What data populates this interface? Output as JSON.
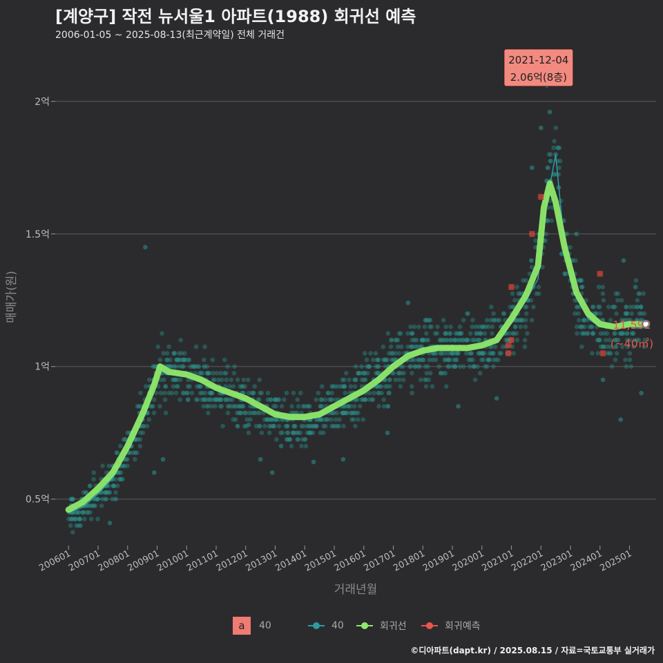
{
  "title": "[계양구] 작전 뉴서울1 아파트(1988) 회귀선 예측",
  "subtitle": "2006-01-05 ~ 2025-08-13(최근계약일) 전체 거래건",
  "credit": "©디아파트(dapt.kr) / 2025.08.15 / 자료=국토교통부 실거래가",
  "annotation": {
    "line1": "2021-12-04",
    "line2": "2.06억(8층)",
    "date_x": 2021.92,
    "value": 2.06
  },
  "end_label": {
    "line1": "11,592",
    "line2": "(~40㎡)"
  },
  "legend": {
    "box_letter": "a",
    "box_label": "40",
    "series_label": "40",
    "regression_label": "회귀선",
    "prediction_label": "회귀예측"
  },
  "colors": {
    "background": "#2b2b2d",
    "scatter": "#2a8c88",
    "series_line": "#2f9aa0",
    "regression": "#8ee86a",
    "prediction": "#e8574f",
    "annotation_bg": "#f28a80"
  },
  "chart_data": {
    "type": "scatter",
    "title": "[계양구] 작전 뉴서울1 아파트(1988) 회귀선 예측",
    "xlabel": "거래년월",
    "ylabel": "매매가(원)",
    "x_range": [
      2005.55,
      2025.9
    ],
    "ylim": [
      0.33,
      2.2
    ],
    "y_ticks": [
      0.5,
      1.0,
      1.5,
      2.0
    ],
    "y_tick_labels": [
      "0.5억",
      "1억",
      "1.5억",
      "2억"
    ],
    "x_ticks": [
      2006,
      2007,
      2008,
      2009,
      2010,
      2011,
      2012,
      2013,
      2014,
      2015,
      2016,
      2017,
      2018,
      2019,
      2020,
      2021,
      2022,
      2023,
      2024,
      2025
    ],
    "x_tick_labels": [
      "200601",
      "200701",
      "200801",
      "200901",
      "201001",
      "201101",
      "201201",
      "201301",
      "201401",
      "201501",
      "201601",
      "201701",
      "201801",
      "201901",
      "202001",
      "202101",
      "202201",
      "202301",
      "202401",
      "202501"
    ],
    "trend": [
      [
        2006.0,
        0.45
      ],
      [
        2006.5,
        0.47
      ],
      [
        2007.0,
        0.52
      ],
      [
        2007.5,
        0.58
      ],
      [
        2008.0,
        0.68
      ],
      [
        2008.5,
        0.8
      ],
      [
        2008.8,
        0.9
      ],
      [
        2009.05,
        1.0
      ],
      [
        2009.3,
        0.97
      ],
      [
        2009.8,
        0.97
      ],
      [
        2010.5,
        0.95
      ],
      [
        2011.0,
        0.92
      ],
      [
        2011.5,
        0.9
      ],
      [
        2012.0,
        0.88
      ],
      [
        2012.5,
        0.84
      ],
      [
        2013.0,
        0.82
      ],
      [
        2013.5,
        0.8
      ],
      [
        2014.0,
        0.8
      ],
      [
        2014.5,
        0.81
      ],
      [
        2015.0,
        0.84
      ],
      [
        2015.5,
        0.88
      ],
      [
        2016.0,
        0.92
      ],
      [
        2016.5,
        0.96
      ],
      [
        2017.0,
        1.01
      ],
      [
        2017.5,
        1.05
      ],
      [
        2018.0,
        1.06
      ],
      [
        2018.5,
        1.07
      ],
      [
        2019.0,
        1.07
      ],
      [
        2019.5,
        1.07
      ],
      [
        2020.0,
        1.08
      ],
      [
        2020.5,
        1.1
      ],
      [
        2021.0,
        1.17
      ],
      [
        2021.5,
        1.25
      ],
      [
        2021.9,
        1.33
      ],
      [
        2022.2,
        1.62
      ],
      [
        2022.5,
        1.8
      ],
      [
        2022.8,
        1.45
      ],
      [
        2023.2,
        1.26
      ],
      [
        2023.6,
        1.18
      ],
      [
        2024.0,
        1.15
      ],
      [
        2024.5,
        1.15
      ],
      [
        2025.0,
        1.16
      ],
      [
        2025.5,
        1.16
      ]
    ],
    "regression": [
      [
        2006.0,
        0.46
      ],
      [
        2006.5,
        0.49
      ],
      [
        2007.0,
        0.54
      ],
      [
        2007.5,
        0.6
      ],
      [
        2008.0,
        0.7
      ],
      [
        2008.5,
        0.82
      ],
      [
        2008.9,
        0.93
      ],
      [
        2009.1,
        1.0
      ],
      [
        2009.4,
        0.98
      ],
      [
        2010.0,
        0.97
      ],
      [
        2010.5,
        0.95
      ],
      [
        2011.0,
        0.92
      ],
      [
        2011.5,
        0.9
      ],
      [
        2012.0,
        0.88
      ],
      [
        2012.5,
        0.85
      ],
      [
        2013.0,
        0.82
      ],
      [
        2013.5,
        0.81
      ],
      [
        2014.0,
        0.81
      ],
      [
        2014.5,
        0.82
      ],
      [
        2015.0,
        0.85
      ],
      [
        2015.5,
        0.88
      ],
      [
        2016.0,
        0.91
      ],
      [
        2016.5,
        0.95
      ],
      [
        2017.0,
        1.0
      ],
      [
        2017.5,
        1.04
      ],
      [
        2018.0,
        1.06
      ],
      [
        2018.5,
        1.07
      ],
      [
        2019.0,
        1.07
      ],
      [
        2019.5,
        1.07
      ],
      [
        2020.0,
        1.08
      ],
      [
        2020.5,
        1.1
      ],
      [
        2021.0,
        1.18
      ],
      [
        2021.5,
        1.27
      ],
      [
        2021.9,
        1.38
      ],
      [
        2022.1,
        1.6
      ],
      [
        2022.3,
        1.69
      ],
      [
        2022.5,
        1.62
      ],
      [
        2022.8,
        1.45
      ],
      [
        2023.2,
        1.28
      ],
      [
        2023.6,
        1.2
      ],
      [
        2024.0,
        1.16
      ],
      [
        2024.5,
        1.15
      ],
      [
        2025.0,
        1.16
      ],
      [
        2025.5,
        1.16
      ]
    ],
    "predictions": [
      [
        2022.0,
        1.64
      ],
      [
        2021.7,
        1.5
      ],
      [
        2021.0,
        1.3
      ],
      [
        2020.9,
        1.08
      ],
      [
        2021.0,
        1.1
      ],
      [
        2020.9,
        1.05
      ],
      [
        2024.0,
        1.35
      ],
      [
        2024.1,
        1.05
      ]
    ],
    "last_point": [
      2025.55,
      1.16
    ],
    "scatter_outliers": [
      [
        2006.1,
        0.5
      ],
      [
        2006.4,
        0.4
      ],
      [
        2007.4,
        0.41
      ],
      [
        2007.6,
        0.5
      ],
      [
        2008.6,
        1.45
      ],
      [
        2008.9,
        0.6
      ],
      [
        2009.2,
        0.65
      ],
      [
        2010.6,
        1.0
      ],
      [
        2012.1,
        0.78
      ],
      [
        2012.5,
        0.65
      ],
      [
        2012.9,
        0.6
      ],
      [
        2013.2,
        0.7
      ],
      [
        2014.3,
        0.64
      ],
      [
        2015.3,
        0.65
      ],
      [
        2016.8,
        0.75
      ],
      [
        2017.5,
        1.24
      ],
      [
        2019.2,
        0.85
      ],
      [
        2020.5,
        0.88
      ],
      [
        2021.7,
        1.75
      ],
      [
        2022.0,
        1.9
      ],
      [
        2022.3,
        1.96
      ],
      [
        2022.2,
        2.06
      ],
      [
        2022.5,
        1.8
      ],
      [
        2023.2,
        1.5
      ],
      [
        2023.4,
        1.3
      ],
      [
        2024.1,
        0.95
      ],
      [
        2024.7,
        0.8
      ],
      [
        2024.8,
        1.4
      ],
      [
        2025.2,
        1.3
      ],
      [
        2025.4,
        0.9
      ]
    ]
  }
}
